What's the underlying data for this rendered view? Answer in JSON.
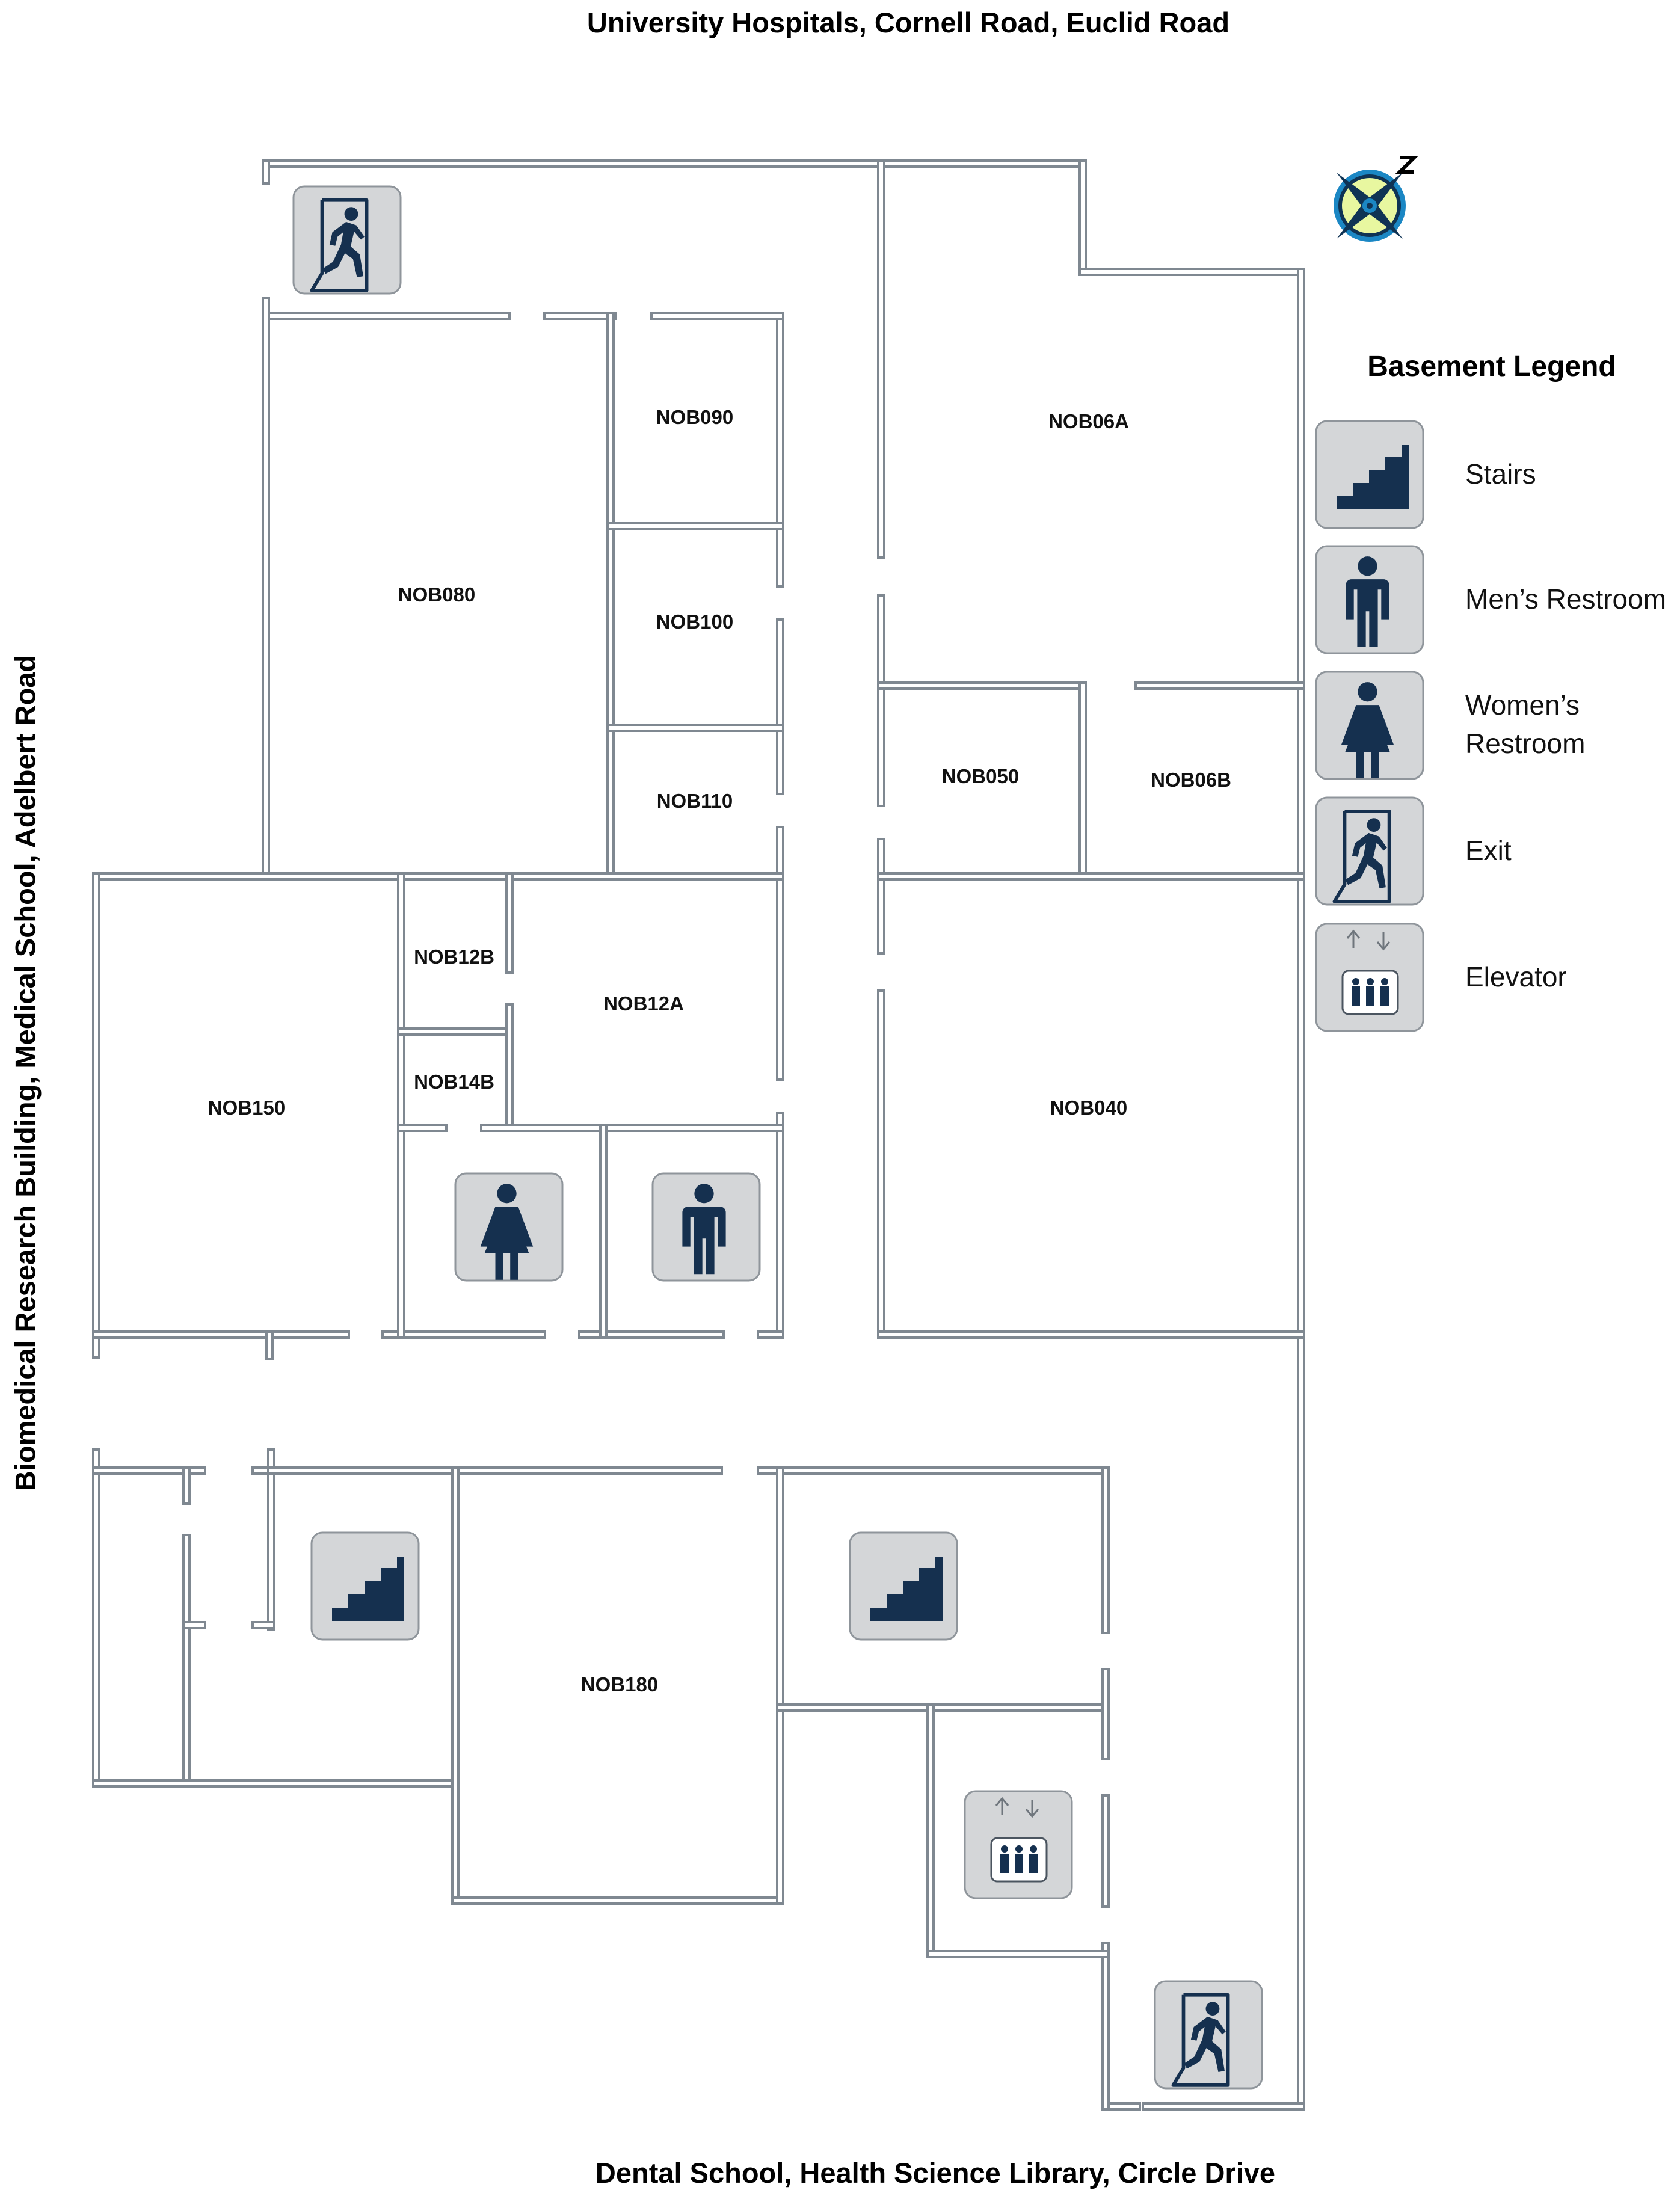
{
  "roads": {
    "north": "University Hospitals, Cornell Road, Euclid Road",
    "south": "Dental School, Health Science Library, Circle Drive",
    "west": "Biomedical Research Building, Medical School, Adelbert Road"
  },
  "rooms": {
    "nob080": "NOB080",
    "nob090": "NOB090",
    "nob100": "NOB100",
    "nob110": "NOB110",
    "nob06a": "NOB06A",
    "nob050": "NOB050",
    "nob06b": "NOB06B",
    "nob040": "NOB040",
    "nob150": "NOB150",
    "nob12b": "NOB12B",
    "nob12a": "NOB12A",
    "nob14b": "NOB14B",
    "nob180": "NOB180"
  },
  "legend": {
    "title": "Basement Legend",
    "items": [
      {
        "icon": "stairs-icon",
        "label": "Stairs"
      },
      {
        "icon": "mens-restroom-icon",
        "label": "Men’s Restroom"
      },
      {
        "icon": "womens-restroom-icon",
        "label": "Women’s Restroom"
      },
      {
        "icon": "exit-icon",
        "label": "Exit"
      },
      {
        "icon": "elevator-icon",
        "label": "Elevator"
      }
    ]
  },
  "colors": {
    "wall": "#7f8891",
    "icon_background": "#d4d6d8",
    "icon_glyph": "#15304f",
    "compass_face": "#e8f7a0",
    "compass_ring": "#1b87c4"
  }
}
